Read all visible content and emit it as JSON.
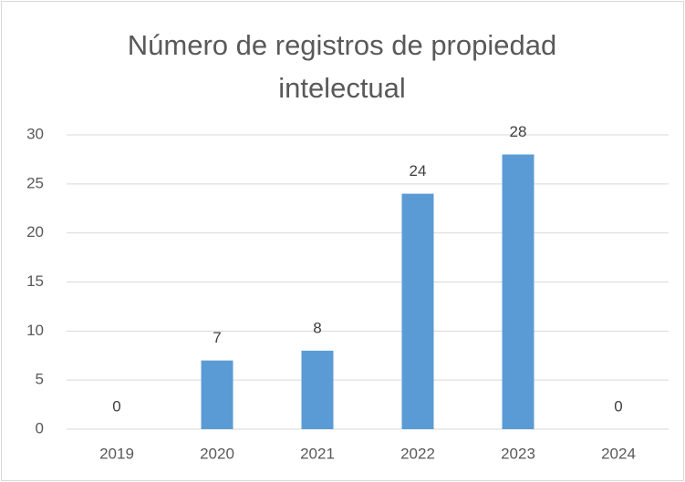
{
  "chart_data": {
    "type": "bar",
    "title": "Número de registros de propiedad intelectual",
    "categories": [
      "2019",
      "2020",
      "2021",
      "2022",
      "2023",
      "2024"
    ],
    "values": [
      0,
      7,
      8,
      24,
      28,
      0
    ],
    "color": "#5b9bd5",
    "ylim": [
      0,
      30
    ],
    "yticks": [
      0,
      5,
      10,
      15,
      20,
      25,
      30
    ],
    "grid": true
  }
}
